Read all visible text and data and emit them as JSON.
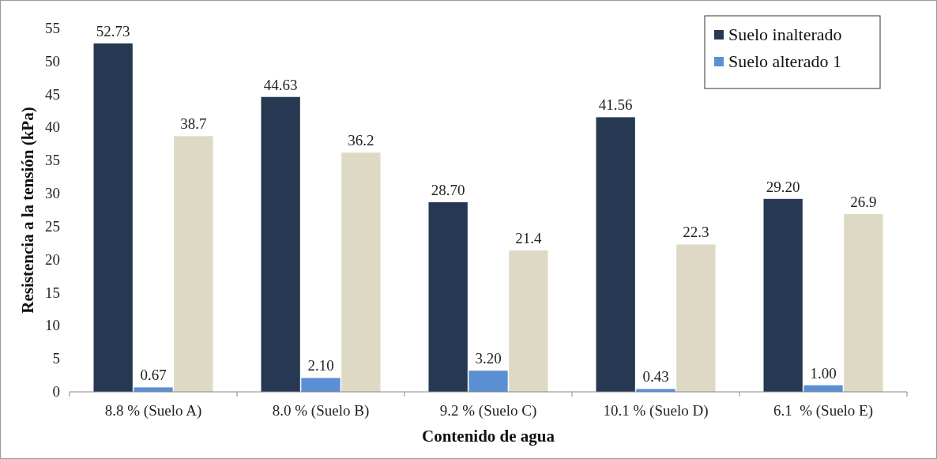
{
  "chart_data": {
    "type": "bar",
    "xlabel": "Contenido de agua",
    "ylabel": "Resistencia a la tensión (kPa)",
    "categories": [
      "8.8 % (Suelo A)",
      "8.0 % (Suelo B)",
      "9.2 % (Suelo C)",
      "10.1 % (Suelo D)",
      "6.1  % (Suelo E)"
    ],
    "series": [
      {
        "name": "Suelo inalterado",
        "color": "#263852",
        "values": [
          52.73,
          44.63,
          28.7,
          41.56,
          29.2
        ],
        "value_labels": [
          "52.73",
          "44.63",
          "28.70",
          "41.56",
          "29.20"
        ]
      },
      {
        "name": "Suelo alterado 1",
        "color": "#5b8fd4",
        "values": [
          0.67,
          2.1,
          3.2,
          0.43,
          1.0
        ],
        "value_labels": [
          "0.67",
          "2.10",
          "3.20",
          "0.43",
          "1.00"
        ]
      },
      {
        "color": "#ddd9c4",
        "values": [
          38.7,
          36.2,
          21.4,
          22.3,
          26.9
        ],
        "value_labels": [
          "38.7",
          "36.2",
          "21.4",
          "22.3",
          "26.9"
        ]
      }
    ],
    "ylim": [
      0,
      55
    ],
    "yticks": [
      0,
      5,
      10,
      15,
      20,
      25,
      30,
      35,
      40,
      45,
      50,
      55
    ],
    "grid": false,
    "legend": "top right"
  }
}
